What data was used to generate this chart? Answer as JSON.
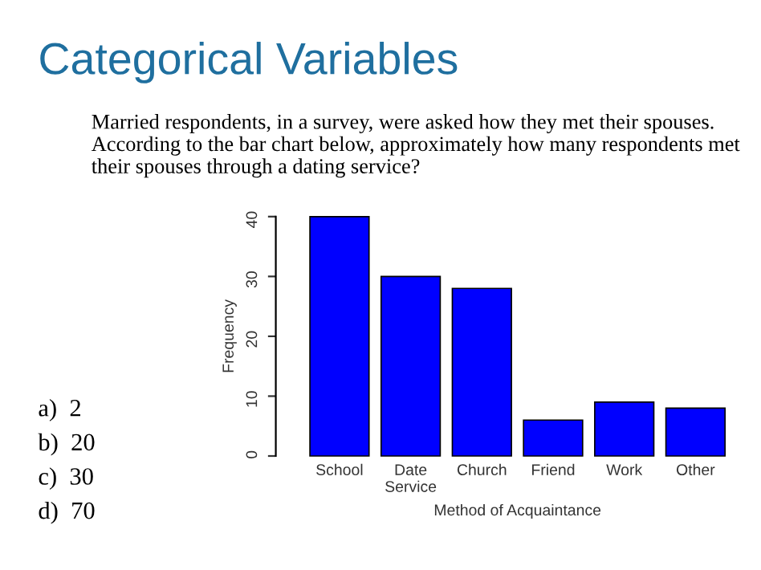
{
  "chart_data": {
    "type": "bar",
    "title": "Categorical Variables",
    "subtitle": "Married respondents, in a survey, were asked how they met their spouses. According to the bar chart below, approximately how many respondents met their spouses through a dating service?",
    "annotations": [
      "a)  2",
      "b)  20",
      "c)  30",
      "d)  70"
    ],
    "categories": [
      "School",
      "Date\nService",
      "Church",
      "Friend",
      "Work",
      "Other"
    ],
    "values": [
      40,
      30,
      28,
      6,
      9,
      8
    ],
    "color": "#0000ff",
    "xlabel": "Method of Acquaintance",
    "ylabel": "Frequency",
    "ylim": [
      0,
      40
    ],
    "yticks": [
      0,
      10,
      20,
      30,
      40
    ],
    "grid": false,
    "legend": false
  }
}
